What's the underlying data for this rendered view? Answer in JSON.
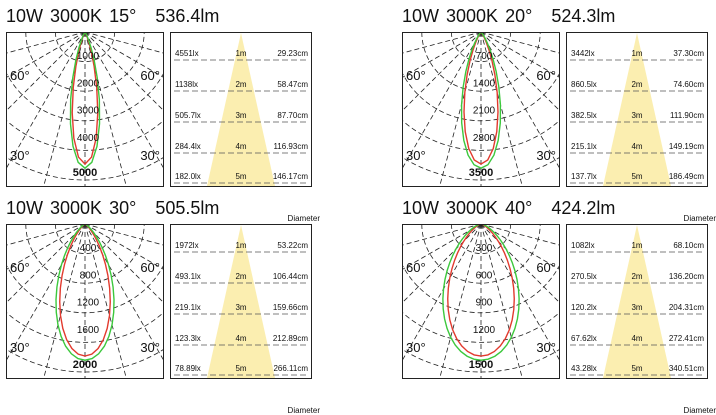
{
  "panels": [
    {
      "power": "10W",
      "cct": "3000K",
      "angle": "15°",
      "lumen": "536.4lm",
      "polar": {
        "beam_deg": 15,
        "rings": [
          "1000",
          "2000",
          "3000",
          "4000",
          "5000"
        ],
        "left_labels": [
          "60°",
          "30°"
        ],
        "right_labels": [
          "60°",
          "30°"
        ]
      },
      "rows": [
        {
          "lux": "4551lx",
          "dist": "1m",
          "diam": "29.23cm"
        },
        {
          "lux": "1138lx",
          "dist": "2m",
          "diam": "58.47cm"
        },
        {
          "lux": "505.7lx",
          "dist": "3m",
          "diam": "87.70cm"
        },
        {
          "lux": "284.4lx",
          "dist": "4m",
          "diam": "116.93cm"
        },
        {
          "lux": "182.0lx",
          "dist": "5m",
          "diam": "146.17cm"
        }
      ],
      "diameter_label": "Diameter"
    },
    {
      "power": "10W",
      "cct": "3000K",
      "angle": "20°",
      "lumen": "524.3lm",
      "polar": {
        "beam_deg": 20,
        "rings": [
          "700",
          "1400",
          "2100",
          "2800",
          "3500"
        ],
        "left_labels": [
          "60°",
          "30°"
        ],
        "right_labels": [
          "60°",
          "30°"
        ]
      },
      "rows": [
        {
          "lux": "3442lx",
          "dist": "1m",
          "diam": "37.30cm"
        },
        {
          "lux": "860.5lx",
          "dist": "2m",
          "diam": "74.60cm"
        },
        {
          "lux": "382.5lx",
          "dist": "3m",
          "diam": "111.90cm"
        },
        {
          "lux": "215.1lx",
          "dist": "4m",
          "diam": "149.19cm"
        },
        {
          "lux": "137.7lx",
          "dist": "5m",
          "diam": "186.49cm"
        }
      ],
      "diameter_label": "Diameter"
    },
    {
      "power": "10W",
      "cct": "3000K",
      "angle": "30°",
      "lumen": "505.5lm",
      "polar": {
        "beam_deg": 30,
        "rings": [
          "400",
          "800",
          "1200",
          "1600",
          "2000"
        ],
        "left_labels": [
          "60°",
          "30°"
        ],
        "right_labels": [
          "60°",
          "30°"
        ]
      },
      "rows": [
        {
          "lux": "1972lx",
          "dist": "1m",
          "diam": "53.22cm"
        },
        {
          "lux": "493.1lx",
          "dist": "2m",
          "diam": "106.44cm"
        },
        {
          "lux": "219.1lx",
          "dist": "3m",
          "diam": "159.66cm"
        },
        {
          "lux": "123.3lx",
          "dist": "4m",
          "diam": "212.89cm"
        },
        {
          "lux": "78.89lx",
          "dist": "5m",
          "diam": "266.11cm"
        }
      ],
      "diameter_label": "Diameter"
    },
    {
      "power": "10W",
      "cct": "3000K",
      "angle": "40°",
      "lumen": "424.2lm",
      "polar": {
        "beam_deg": 40,
        "rings": [
          "300",
          "600",
          "900",
          "1200",
          "1500"
        ],
        "left_labels": [
          "60°",
          "30°"
        ],
        "right_labels": [
          "60°",
          "30°"
        ]
      },
      "rows": [
        {
          "lux": "1082lx",
          "dist": "1m",
          "diam": "68.10cm"
        },
        {
          "lux": "270.5lx",
          "dist": "2m",
          "diam": "136.20cm"
        },
        {
          "lux": "120.2lx",
          "dist": "3m",
          "diam": "204.31cm"
        },
        {
          "lux": "67.62lx",
          "dist": "4m",
          "diam": "272.41cm"
        },
        {
          "lux": "43.28lx",
          "dist": "5m",
          "diam": "340.51cm"
        }
      ],
      "diameter_label": "Diameter"
    }
  ],
  "colors": {
    "red_curve": "#e23a2e",
    "green_curve": "#3cc83c",
    "cone": "#fbeeb0"
  }
}
